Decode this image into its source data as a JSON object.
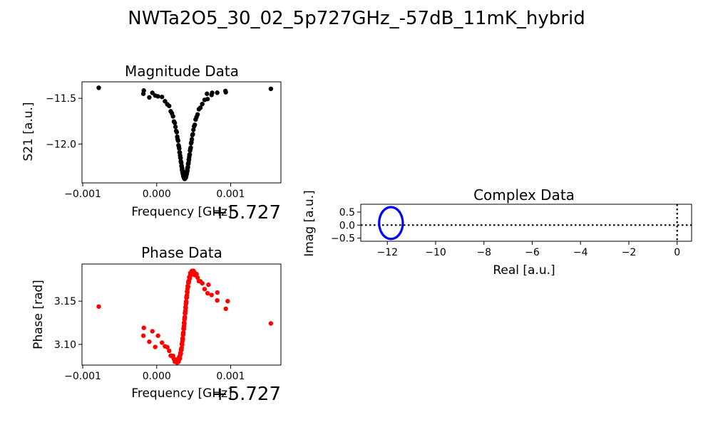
{
  "figure": {
    "title": "NWTa2O5_30_02_5p727GHz_-57dB_11mK_hybrid"
  },
  "chart_data": [
    {
      "id": "magnitude",
      "type": "scatter",
      "title": "Magnitude Data",
      "xlabel": "Frequency [GHz]",
      "ylabel": "S21 [a.u.]",
      "x_offset_label": "+5.727",
      "xlim": [
        -0.00101,
        0.00168
      ],
      "ylim": [
        -12.425,
        -11.32
      ],
      "xticks": [
        -0.001,
        0.0,
        0.001
      ],
      "xtick_labels": [
        "−0.001",
        "0.000",
        "0.001"
      ],
      "yticks": [
        -12.0,
        -11.5
      ],
      "ytick_labels": [
        "−12.0",
        "−11.5"
      ],
      "color": "#000000",
      "model": {
        "kind": "lorentzian_dip",
        "f0": 0.00038,
        "gamma": 0.00011,
        "baseline": -11.385,
        "depth": 0.985,
        "x_start": -0.00093,
        "x_end": 0.00162,
        "n": 110
      },
      "extra_points": [
        [
          -0.00018,
          -11.45
        ],
        [
          -0.0001,
          -11.49
        ],
        [
          -2e-05,
          -11.47
        ],
        [
          0.00068,
          -11.45
        ],
        [
          0.00075,
          -11.44
        ],
        [
          0.00093,
          -11.42
        ]
      ]
    },
    {
      "id": "phase",
      "type": "scatter",
      "title": "Phase Data",
      "xlabel": "Frequency [GHz]",
      "ylabel": "Phase [rad]",
      "x_offset_label": "+5.727",
      "xlim": [
        -0.00101,
        0.00168
      ],
      "ylim": [
        3.076,
        3.193
      ],
      "xticks": [
        -0.001,
        0.0,
        0.001
      ],
      "xtick_labels": [
        "−0.001",
        "0.000",
        "0.001"
      ],
      "yticks": [
        3.1,
        3.15
      ],
      "ytick_labels": [
        "3.10",
        "3.15"
      ],
      "color": "#ff0000",
      "model": {
        "kind": "dispersive",
        "f0": 0.00038,
        "gamma": 0.00011,
        "slope": 17.0,
        "center": 3.132,
        "amp": 0.0535,
        "x_start": -0.00093,
        "x_end": 0.00162,
        "n": 110
      },
      "extra_points": [
        [
          -0.00018,
          3.11
        ],
        [
          -0.0001,
          3.103
        ],
        [
          -2e-05,
          3.097
        ],
        [
          0.0007,
          3.169
        ],
        [
          0.00082,
          3.16
        ],
        [
          0.00096,
          3.15
        ]
      ]
    },
    {
      "id": "complex",
      "type": "scatter",
      "title": "Complex Data",
      "xlabel": "Real [a.u.]",
      "ylabel": "Imag [a.u.]",
      "xlim": [
        -13.1,
        0.6
      ],
      "ylim": [
        -0.62,
        0.8
      ],
      "xticks": [
        -12,
        -10,
        -8,
        -6,
        -4,
        -2,
        0
      ],
      "xtick_labels": [
        "−12",
        "−10",
        "−8",
        "−6",
        "−4",
        "−2",
        "0"
      ],
      "yticks": [
        -0.5,
        0.0,
        0.5
      ],
      "ytick_labels": [
        "−0.5",
        "0.0",
        "0.5"
      ],
      "color": "#0000ff",
      "circle": {
        "cx": -11.85,
        "cy": 0.08,
        "rx": 0.49,
        "ry": 0.61,
        "n": 110
      },
      "hline": {
        "y": 0.0,
        "style": "dotted",
        "color": "#000000"
      },
      "vline": {
        "x": 0.0,
        "style": "dotted",
        "color": "#000000"
      }
    }
  ]
}
